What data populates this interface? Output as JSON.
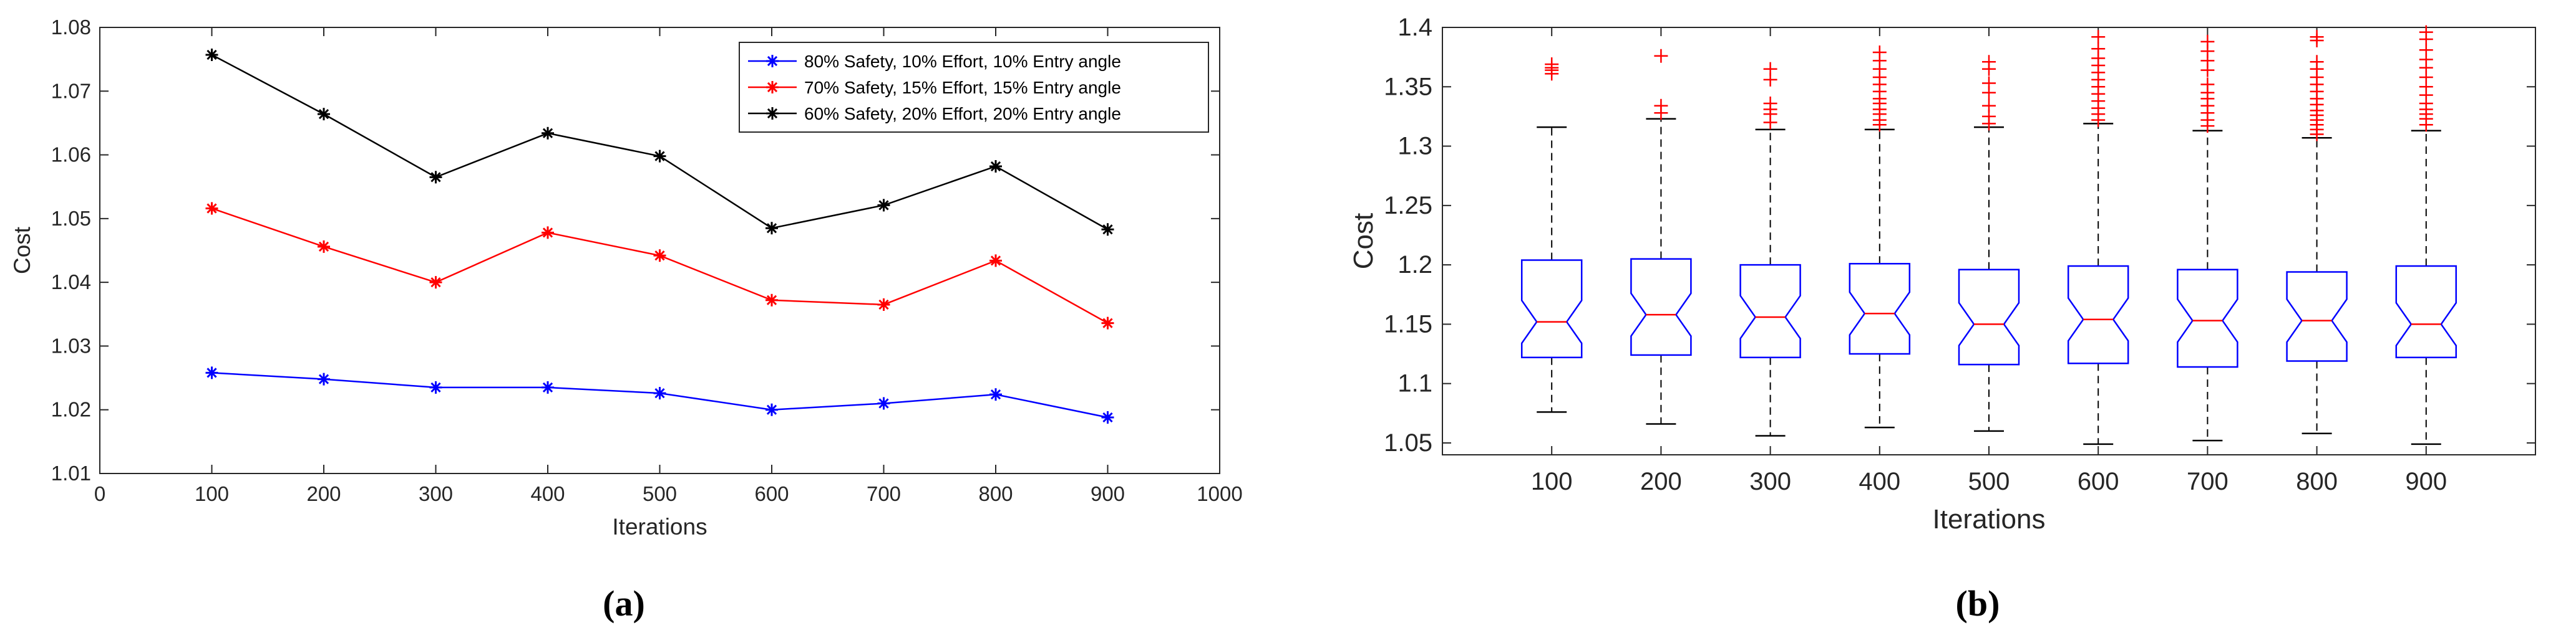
{
  "chart_data": [
    {
      "type": "line",
      "caption": "(a)",
      "title": "",
      "xlabel": "Iterations",
      "ylabel": "Cost",
      "xlim": [
        0,
        1000
      ],
      "ylim": [
        1.01,
        1.08
      ],
      "xticks": [
        0,
        100,
        200,
        300,
        400,
        500,
        600,
        700,
        800,
        900,
        1000
      ],
      "yticks": [
        1.01,
        1.02,
        1.03,
        1.04,
        1.05,
        1.06,
        1.07,
        1.08
      ],
      "legend_position": "top-right",
      "x": [
        100,
        200,
        300,
        400,
        500,
        600,
        700,
        800,
        900
      ],
      "series": [
        {
          "name": "80% Safety, 10% Effort, 10% Entry angle",
          "color": "#0000ff",
          "marker": "asterisk",
          "values": [
            1.0258,
            1.0248,
            1.0235,
            1.0235,
            1.0226,
            1.02,
            1.021,
            1.0224,
            1.0188
          ]
        },
        {
          "name": "70% Safety, 15% Effort, 15% Entry angle",
          "color": "#ff0000",
          "marker": "asterisk",
          "values": [
            1.0516,
            1.0456,
            1.04,
            1.0478,
            1.0442,
            1.0372,
            1.0365,
            1.0434,
            1.0336
          ]
        },
        {
          "name": "60% Safety, 20% Effort, 20% Entry angle",
          "color": "#000000",
          "marker": "asterisk",
          "values": [
            1.0757,
            1.0664,
            1.0565,
            1.0634,
            1.0598,
            1.0485,
            1.0521,
            1.0582,
            1.0483
          ]
        }
      ]
    },
    {
      "type": "boxplot",
      "caption": "(b)",
      "title": "",
      "xlabel": "Iterations",
      "ylabel": "Cost",
      "ylim": [
        1.04,
        1.4
      ],
      "yticks": [
        1.05,
        1.1,
        1.15,
        1.2,
        1.25,
        1.3,
        1.35,
        1.4
      ],
      "categories": [
        "100",
        "200",
        "300",
        "400",
        "500",
        "600",
        "700",
        "800",
        "900"
      ],
      "box_color": "#0000ff",
      "median_color": "#ff0000",
      "whisker_color": "#000000",
      "outlier_color": "#ff0000",
      "boxes": [
        {
          "q1": 1.122,
          "median": 1.152,
          "q3": 1.204,
          "whisker_low": 1.076,
          "whisker_high": 1.316,
          "outliers": [
            1.361,
            1.364,
            1.366,
            1.369
          ]
        },
        {
          "q1": 1.124,
          "median": 1.158,
          "q3": 1.205,
          "whisker_low": 1.066,
          "whisker_high": 1.323,
          "outliers": [
            1.328,
            1.334,
            1.376
          ]
        },
        {
          "q1": 1.122,
          "median": 1.156,
          "q3": 1.2,
          "whisker_low": 1.056,
          "whisker_high": 1.314,
          "outliers": [
            1.32,
            1.327,
            1.331,
            1.336,
            1.356,
            1.365
          ]
        },
        {
          "q1": 1.125,
          "median": 1.159,
          "q3": 1.201,
          "whisker_low": 1.063,
          "whisker_high": 1.314,
          "outliers": [
            1.318,
            1.322,
            1.327,
            1.331,
            1.336,
            1.34,
            1.346,
            1.352,
            1.358,
            1.365,
            1.372,
            1.379
          ]
        },
        {
          "q1": 1.116,
          "median": 1.15,
          "q3": 1.196,
          "whisker_low": 1.06,
          "whisker_high": 1.316,
          "outliers": [
            1.319,
            1.325,
            1.334,
            1.345,
            1.353,
            1.365,
            1.371
          ]
        },
        {
          "q1": 1.117,
          "median": 1.154,
          "q3": 1.199,
          "whisker_low": 1.049,
          "whisker_high": 1.319,
          "outliers": [
            1.322,
            1.327,
            1.332,
            1.338,
            1.344,
            1.35,
            1.356,
            1.362,
            1.368,
            1.374,
            1.382,
            1.392
          ]
        },
        {
          "q1": 1.114,
          "median": 1.153,
          "q3": 1.196,
          "whisker_low": 1.052,
          "whisker_high": 1.313,
          "outliers": [
            1.317,
            1.322,
            1.328,
            1.334,
            1.34,
            1.345,
            1.352,
            1.364,
            1.372,
            1.38,
            1.388
          ]
        },
        {
          "q1": 1.119,
          "median": 1.153,
          "q3": 1.194,
          "whisker_low": 1.058,
          "whisker_high": 1.307,
          "outliers": [
            1.31,
            1.314,
            1.318,
            1.322,
            1.326,
            1.33,
            1.335,
            1.34,
            1.346,
            1.352,
            1.358,
            1.365,
            1.371,
            1.389,
            1.392
          ]
        },
        {
          "q1": 1.122,
          "median": 1.15,
          "q3": 1.199,
          "whisker_low": 1.049,
          "whisker_high": 1.313,
          "outliers": [
            1.318,
            1.323,
            1.327,
            1.331,
            1.336,
            1.343,
            1.35,
            1.358,
            1.366,
            1.373,
            1.381,
            1.39,
            1.396
          ]
        }
      ]
    }
  ]
}
